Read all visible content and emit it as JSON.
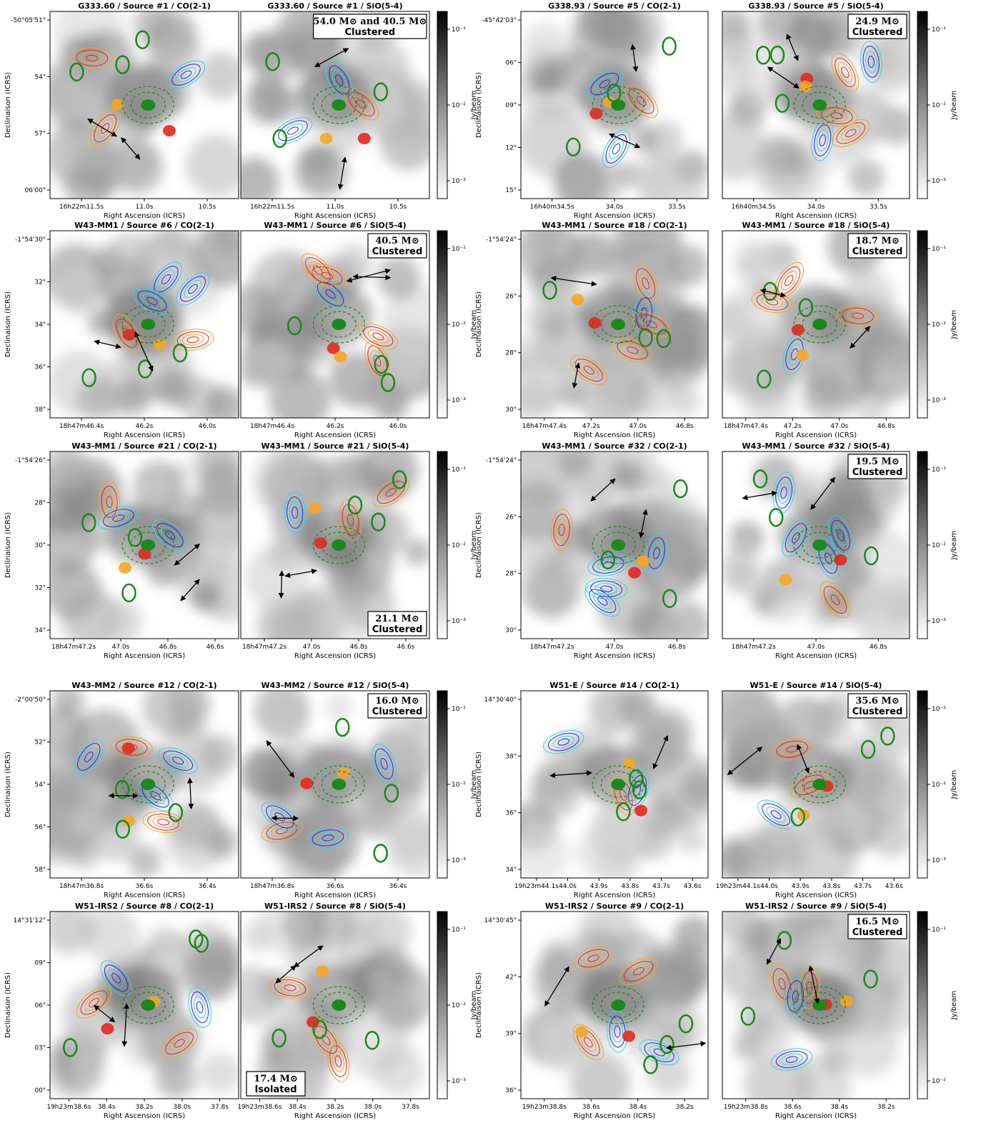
{
  "figure": {
    "colorbar_label": "Jy/beam",
    "x_axis_label": "Right Ascension (ICRS)",
    "y_axis_label": "Declinaison (ICRS)",
    "contour_colors": {
      "red": "#e8261f",
      "orange": "#f5a623",
      "blue": "#2a2ae0",
      "cyan": "#33d6e6",
      "green": "#1a8a1a"
    }
  },
  "chart_data": [
    {
      "type": "heatmap",
      "title": "G333.60 / Source #1 / CO(2-1)",
      "x_ticks": [
        "16h22m11.5s",
        "11.0s",
        "10.5s"
      ],
      "y_ticks": [
        "-50°05'51\"",
        "54\"",
        "57\"",
        "06'00\""
      ],
      "annotation": [
        "",
        ""
      ]
    },
    {
      "type": "heatmap",
      "title": "G333.60 / Source #1 / SiO(5-4)",
      "x_ticks": [
        "16h22m11.5s",
        "11.0s",
        "10.5s"
      ],
      "y_ticks": [],
      "annotation": [
        "54.0 M⊙ and 40.5 M⊙",
        "Clustered"
      ],
      "colorbar_ticks": [
        "10⁻¹",
        "10⁻²",
        "10⁻³"
      ]
    },
    {
      "type": "heatmap",
      "title": "G338.93 / Source #5 / CO(2-1)",
      "x_ticks": [
        "16h40m34.5s",
        "34.0s",
        "33.5s"
      ],
      "y_ticks": [
        "-45°42'03\"",
        "06\"",
        "09\"",
        "12\"",
        "15\""
      ],
      "annotation": [
        "",
        ""
      ]
    },
    {
      "type": "heatmap",
      "title": "G338.93 / Source #5 / SiO(5-4)",
      "x_ticks": [
        "16h40m34.5s",
        "34.0s",
        "33.5s"
      ],
      "y_ticks": [],
      "annotation": [
        "24.9 M⊙",
        "Clustered"
      ],
      "colorbar_ticks": [
        "10⁻¹",
        "10⁻²",
        "10⁻³"
      ]
    },
    {
      "type": "heatmap",
      "title": "W43-MM1 / Source #6 / CO(2-1)",
      "x_ticks": [
        "18h47m46.4s",
        "46.2s",
        "46.0s"
      ],
      "y_ticks": [
        "-1°54'30\"",
        "32\"",
        "34\"",
        "36\"",
        "38\""
      ],
      "annotation": [
        "",
        ""
      ]
    },
    {
      "type": "heatmap",
      "title": "W43-MM1 / Source #6 / SiO(5-4)",
      "x_ticks": [
        "18h47m46.4s",
        "46.2s",
        "46.0s"
      ],
      "y_ticks": [],
      "annotation": [
        "40.5 M⊙",
        "Clustered"
      ],
      "colorbar_ticks": [
        "10⁻¹",
        "10⁻²",
        "10⁻³"
      ]
    },
    {
      "type": "heatmap",
      "title": "W43-MM1 / Source #18 / CO(2-1)",
      "x_ticks": [
        "18h47m47.4s",
        "47.2s",
        "47.0s",
        "46.8s"
      ],
      "y_ticks": [
        "-1°54'24\"",
        "26\"",
        "28\"",
        "30\""
      ],
      "annotation": [
        "",
        ""
      ]
    },
    {
      "type": "heatmap",
      "title": "W43-MM1 / Source #18 / SiO(5-4)",
      "x_ticks": [
        "18h47m47.4s",
        "47.2s",
        "47.0s",
        "46.8s"
      ],
      "y_ticks": [],
      "annotation": [
        "18.7 M⊙",
        "Clustered"
      ],
      "colorbar_ticks": [
        "10⁻¹",
        "10⁻²",
        "10⁻³"
      ]
    },
    {
      "type": "heatmap",
      "title": "W43-MM1 / Source #21 / CO(2-1)",
      "x_ticks": [
        "18h47m47.2s",
        "47.0s",
        "46.8s",
        "46.6s"
      ],
      "y_ticks": [
        "-1°54'26\"",
        "28\"",
        "30\"",
        "32\"",
        "34\""
      ],
      "annotation": [
        "",
        ""
      ]
    },
    {
      "type": "heatmap",
      "title": "W43-MM1 / Source #21 / SiO(5-4)",
      "x_ticks": [
        "18h47m47.2s",
        "47.0s",
        "46.8s",
        "46.6s"
      ],
      "y_ticks": [],
      "annotation": [
        "21.1 M⊙",
        "Clustered"
      ],
      "colorbar_ticks": [
        "10⁻¹",
        "10⁻²",
        "10⁻³"
      ]
    },
    {
      "type": "heatmap",
      "title": "W43-MM1 / Source #32 / CO(2-1)",
      "x_ticks": [
        "18h47m47.2s",
        "47.0s",
        "46.8s"
      ],
      "y_ticks": [
        "-1°54'24\"",
        "26\"",
        "28\"",
        "30\""
      ],
      "annotation": [
        "",
        ""
      ]
    },
    {
      "type": "heatmap",
      "title": "W43-MM1 / Source #32 / SiO(5-4)",
      "x_ticks": [
        "18h47m47.2s",
        "47.0s",
        "46.8s"
      ],
      "y_ticks": [],
      "annotation": [
        "19.5 M⊙",
        "Clustered"
      ],
      "colorbar_ticks": [
        "10⁻¹",
        "10⁻²",
        "10⁻³"
      ]
    },
    {
      "type": "heatmap",
      "title": "W43-MM2 / Source #12 / CO(2-1)",
      "x_ticks": [
        "18h47m36.8s",
        "36.6s",
        "36.4s"
      ],
      "y_ticks": [
        "-2°00'50\"",
        "52\"",
        "54\"",
        "56\"",
        "58\""
      ],
      "annotation": [
        "",
        ""
      ]
    },
    {
      "type": "heatmap",
      "title": "W43-MM2 / Source #12 / SiO(5-4)",
      "x_ticks": [
        "18h47m36.8s",
        "36.6s",
        "36.4s"
      ],
      "y_ticks": [],
      "annotation": [
        "16.0 M⊙",
        "Clustered"
      ],
      "colorbar_ticks": [
        "10⁻¹",
        "10⁻²",
        "10⁻³"
      ]
    },
    {
      "type": "heatmap",
      "title": "W51-E / Source #14 / CO(2-1)",
      "x_ticks": [
        "19h23m44.1s",
        "44.0s",
        "43.9s",
        "43.8s",
        "43.7s",
        "43.6s"
      ],
      "y_ticks": [
        "14°30'40\"",
        "38\"",
        "36\"",
        "34\""
      ],
      "annotation": [
        "",
        ""
      ]
    },
    {
      "type": "heatmap",
      "title": "W51-E / Source #14 / SiO(5-4)",
      "x_ticks": [
        "19h23m44.1s",
        "44.0s",
        "43.9s",
        "43.8s",
        "43.7s",
        "43.6s"
      ],
      "y_ticks": [],
      "annotation": [
        "35.6 M⊙",
        "Clustered"
      ],
      "colorbar_ticks": [
        "10⁻¹",
        "10⁻²",
        "10⁻³"
      ]
    },
    {
      "type": "heatmap",
      "title": "W51-IRS2 / Source #8 / CO(2-1)",
      "x_ticks": [
        "19h23m38.6s",
        "38.4s",
        "38.2s",
        "38.0s",
        "37.8s"
      ],
      "y_ticks": [
        "14°31'12\"",
        "09\"",
        "06\"",
        "03\"",
        "00\""
      ],
      "annotation": [
        "",
        ""
      ]
    },
    {
      "type": "heatmap",
      "title": "W51-IRS2 / Source #8 / SiO(5-4)",
      "x_ticks": [
        "19h23m38.6s",
        "38.4s",
        "38.2s",
        "38.0s",
        "37.8s"
      ],
      "y_ticks": [],
      "annotation": [
        "17.4 M⊙",
        "Isolated"
      ],
      "colorbar_ticks": [
        "10⁻¹",
        "10⁻²",
        "10⁻³"
      ]
    },
    {
      "type": "heatmap",
      "title": "W51-IRS2 / Source #9 / CO(2-1)",
      "x_ticks": [
        "19h23m38.8s",
        "38.6s",
        "38.4s",
        "38.2s"
      ],
      "y_ticks": [
        "14°30'45\"",
        "42\"",
        "39\"",
        "36\""
      ],
      "annotation": [
        "",
        ""
      ]
    },
    {
      "type": "heatmap",
      "title": "W51-IRS2 / Source #9 / SiO(5-4)",
      "x_ticks": [
        "19h23m38.8s",
        "38.6s",
        "38.4s",
        "38.2s"
      ],
      "y_ticks": [],
      "annotation": [
        "16.5 M⊙",
        "Clustered"
      ],
      "colorbar_ticks": [
        "10⁻¹",
        "10⁻²"
      ]
    }
  ]
}
